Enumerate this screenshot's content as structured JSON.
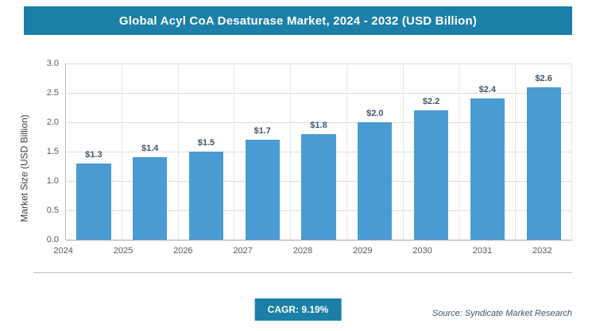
{
  "header": {
    "title": "Global Acyl CoA Desaturase Market, 2024 - 2032 (USD Billion)"
  },
  "chart_data": {
    "type": "bar",
    "categories": [
      "2024",
      "2025",
      "2026",
      "2027",
      "2028",
      "2029",
      "2030",
      "2031",
      "2032"
    ],
    "values": [
      1.3,
      1.4,
      1.5,
      1.7,
      1.8,
      2.0,
      2.2,
      2.4,
      2.6
    ],
    "bar_labels": [
      "$1.3",
      "$1.4",
      "$1.5",
      "$1.7",
      "$1.8",
      "$2.0",
      "$2.2",
      "$2.4",
      "$2.6"
    ],
    "title": "Global Acyl CoA Desaturase Market, 2024 - 2032 (USD Billion)",
    "xlabel": "",
    "ylabel": "Market Size (USD Billion)",
    "ylim": [
      0,
      3.0
    ],
    "ytick_step": 0.5,
    "grid": true,
    "legend": "none"
  },
  "footer": {
    "cagr_label": "CAGR: 9.19%",
    "source": "Source: Syndicate Market Research"
  },
  "colors": {
    "accent": "#1b7fa8",
    "bar": "#4a9bd1",
    "grid": "#dcdcdc",
    "axis": "#bfbfbf",
    "tick_text": "#595959",
    "data_label": "#44546a"
  }
}
